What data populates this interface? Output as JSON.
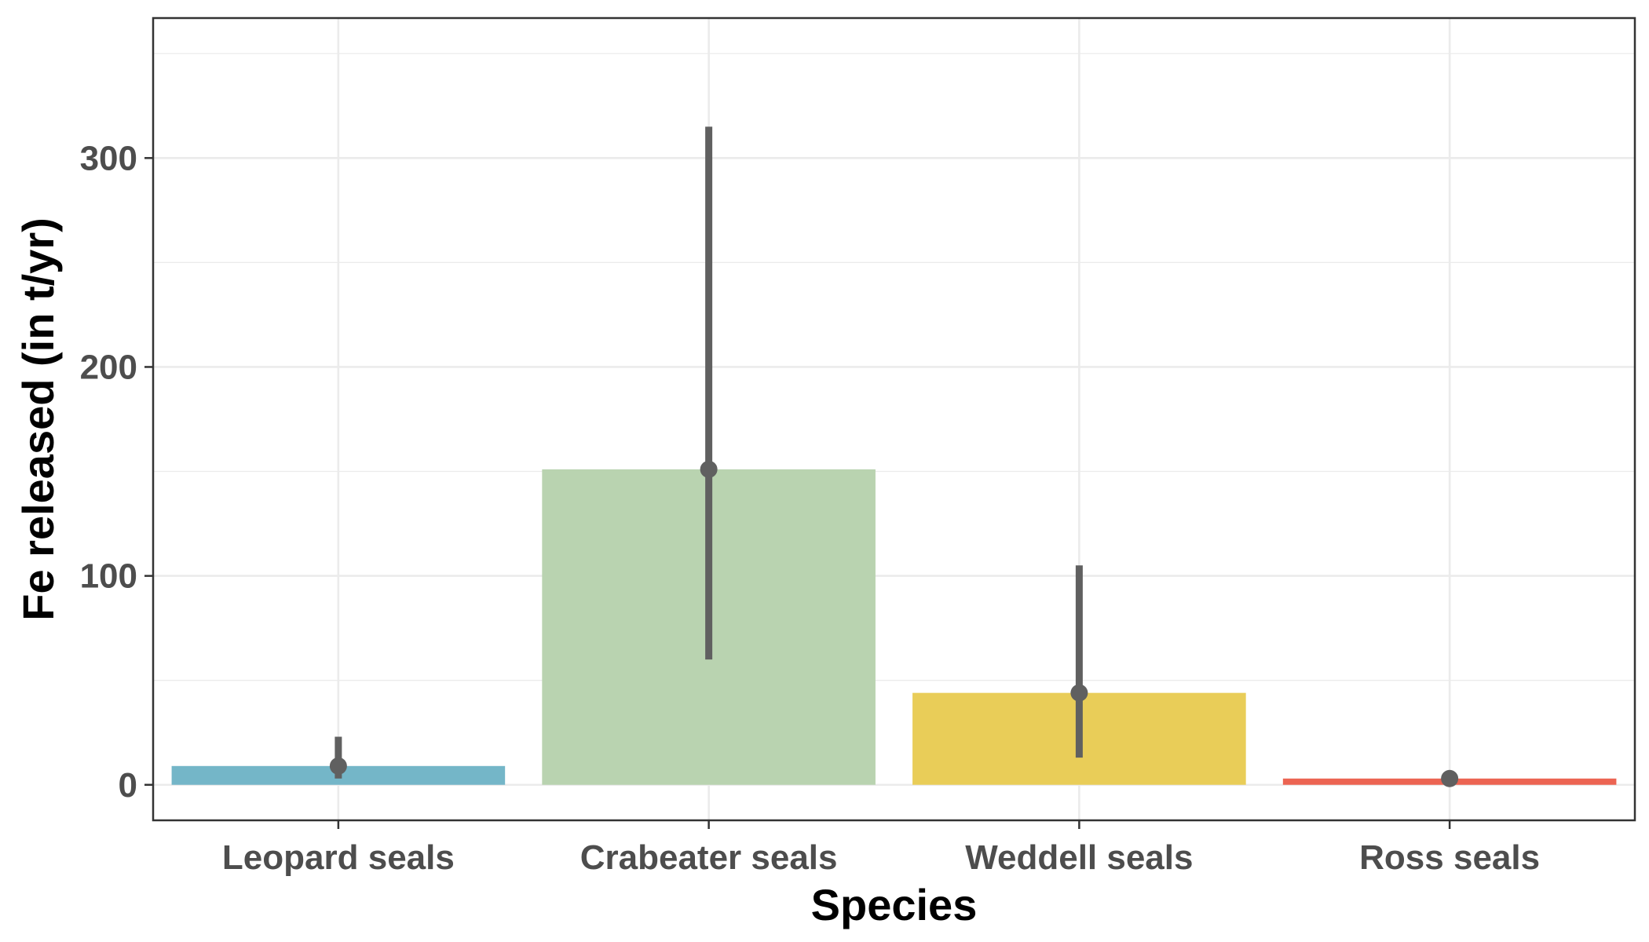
{
  "chart_data": {
    "type": "bar",
    "title": "",
    "xlabel": "Species",
    "ylabel": "Fe released (in t/yr)",
    "categories": [
      "Leopard seals",
      "Crabeater seals",
      "Weddell seals",
      "Ross seals"
    ],
    "values": [
      9,
      151,
      44,
      3
    ],
    "error_low": [
      3,
      60,
      13,
      1
    ],
    "error_high": [
      23,
      315,
      105,
      6
    ],
    "colors": [
      "#74b6c8",
      "#b9d3b0",
      "#e9cd58",
      "#ec6452"
    ],
    "ylim": [
      -17,
      367
    ],
    "yticks": [
      0,
      100,
      200,
      300
    ],
    "ytick_labels": [
      "0",
      "100",
      "200",
      "300"
    ],
    "grid": true,
    "legend": "none"
  }
}
